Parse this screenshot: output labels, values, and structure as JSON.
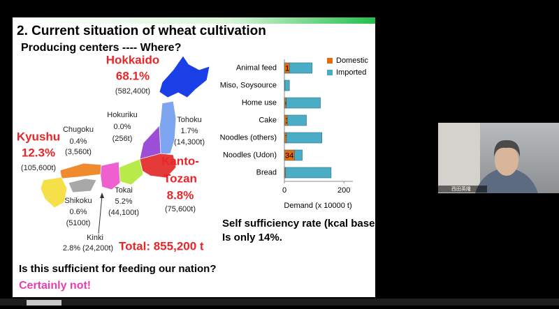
{
  "slide": {
    "title": "2. Current situation of wheat cultivation",
    "subtitle": "Producing centers ---- Where?",
    "regions": [
      {
        "name": [
          "Hokkaido"
        ],
        "share": "68.1%",
        "amount": "(582,400t)"
      },
      {
        "name": [
          "Tohoku"
        ],
        "share": "1.7%",
        "amount": "(14,300t)"
      },
      {
        "name": [
          "Hokuriku"
        ],
        "share": "0.0%",
        "amount": "(256t)"
      },
      {
        "name": [
          "Chugoku"
        ],
        "share": "0.4%",
        "amount": "(3,560t)"
      },
      {
        "name": [
          "Kyushu"
        ],
        "share": "12.3%",
        "amount": "(105,600t)"
      },
      {
        "name": [
          "Kanto-",
          "Tozan"
        ],
        "share": "8.8%",
        "amount": "(75,600t)"
      },
      {
        "name": [
          "Tokai"
        ],
        "share": "5.2%",
        "amount": "(44,100t)"
      },
      {
        "name": [
          "Shikoku"
        ],
        "share": "0.6%",
        "amount": "(5100t)"
      },
      {
        "name": [
          "Kinki"
        ],
        "share": "2.8% (24,200t)"
      }
    ],
    "total": "Total: 855,200 t",
    "question": "Is this sufficient for feeding our nation?",
    "answer": "Certainly not!",
    "self_sufficiency": [
      "Self sufficiency rate (kcal base)",
      "Is only 14%."
    ]
  },
  "video": {
    "name": "西田英隆"
  },
  "chart_data": {
    "type": "bar",
    "orientation": "horizontal",
    "stacked": true,
    "categories": [
      "Animal feed",
      "Miso, Soysource",
      "Home use",
      "Cake",
      "Noodles (others)",
      "Noodles (Udon)",
      "Bread"
    ],
    "series": [
      {
        "name": "Domestic",
        "color": "#e46c0a",
        "values": [
          17,
          2,
          6,
          10,
          7,
          34,
          4
        ]
      },
      {
        "name": "Imported",
        "color": "#4bacc6",
        "values": [
          76,
          15,
          115,
          64,
          119,
          26,
          153
        ]
      }
    ],
    "xlim": [
      0,
      230
    ],
    "xticks": [
      0,
      200
    ],
    "xlabel": "Demand (x 10000 t)"
  }
}
